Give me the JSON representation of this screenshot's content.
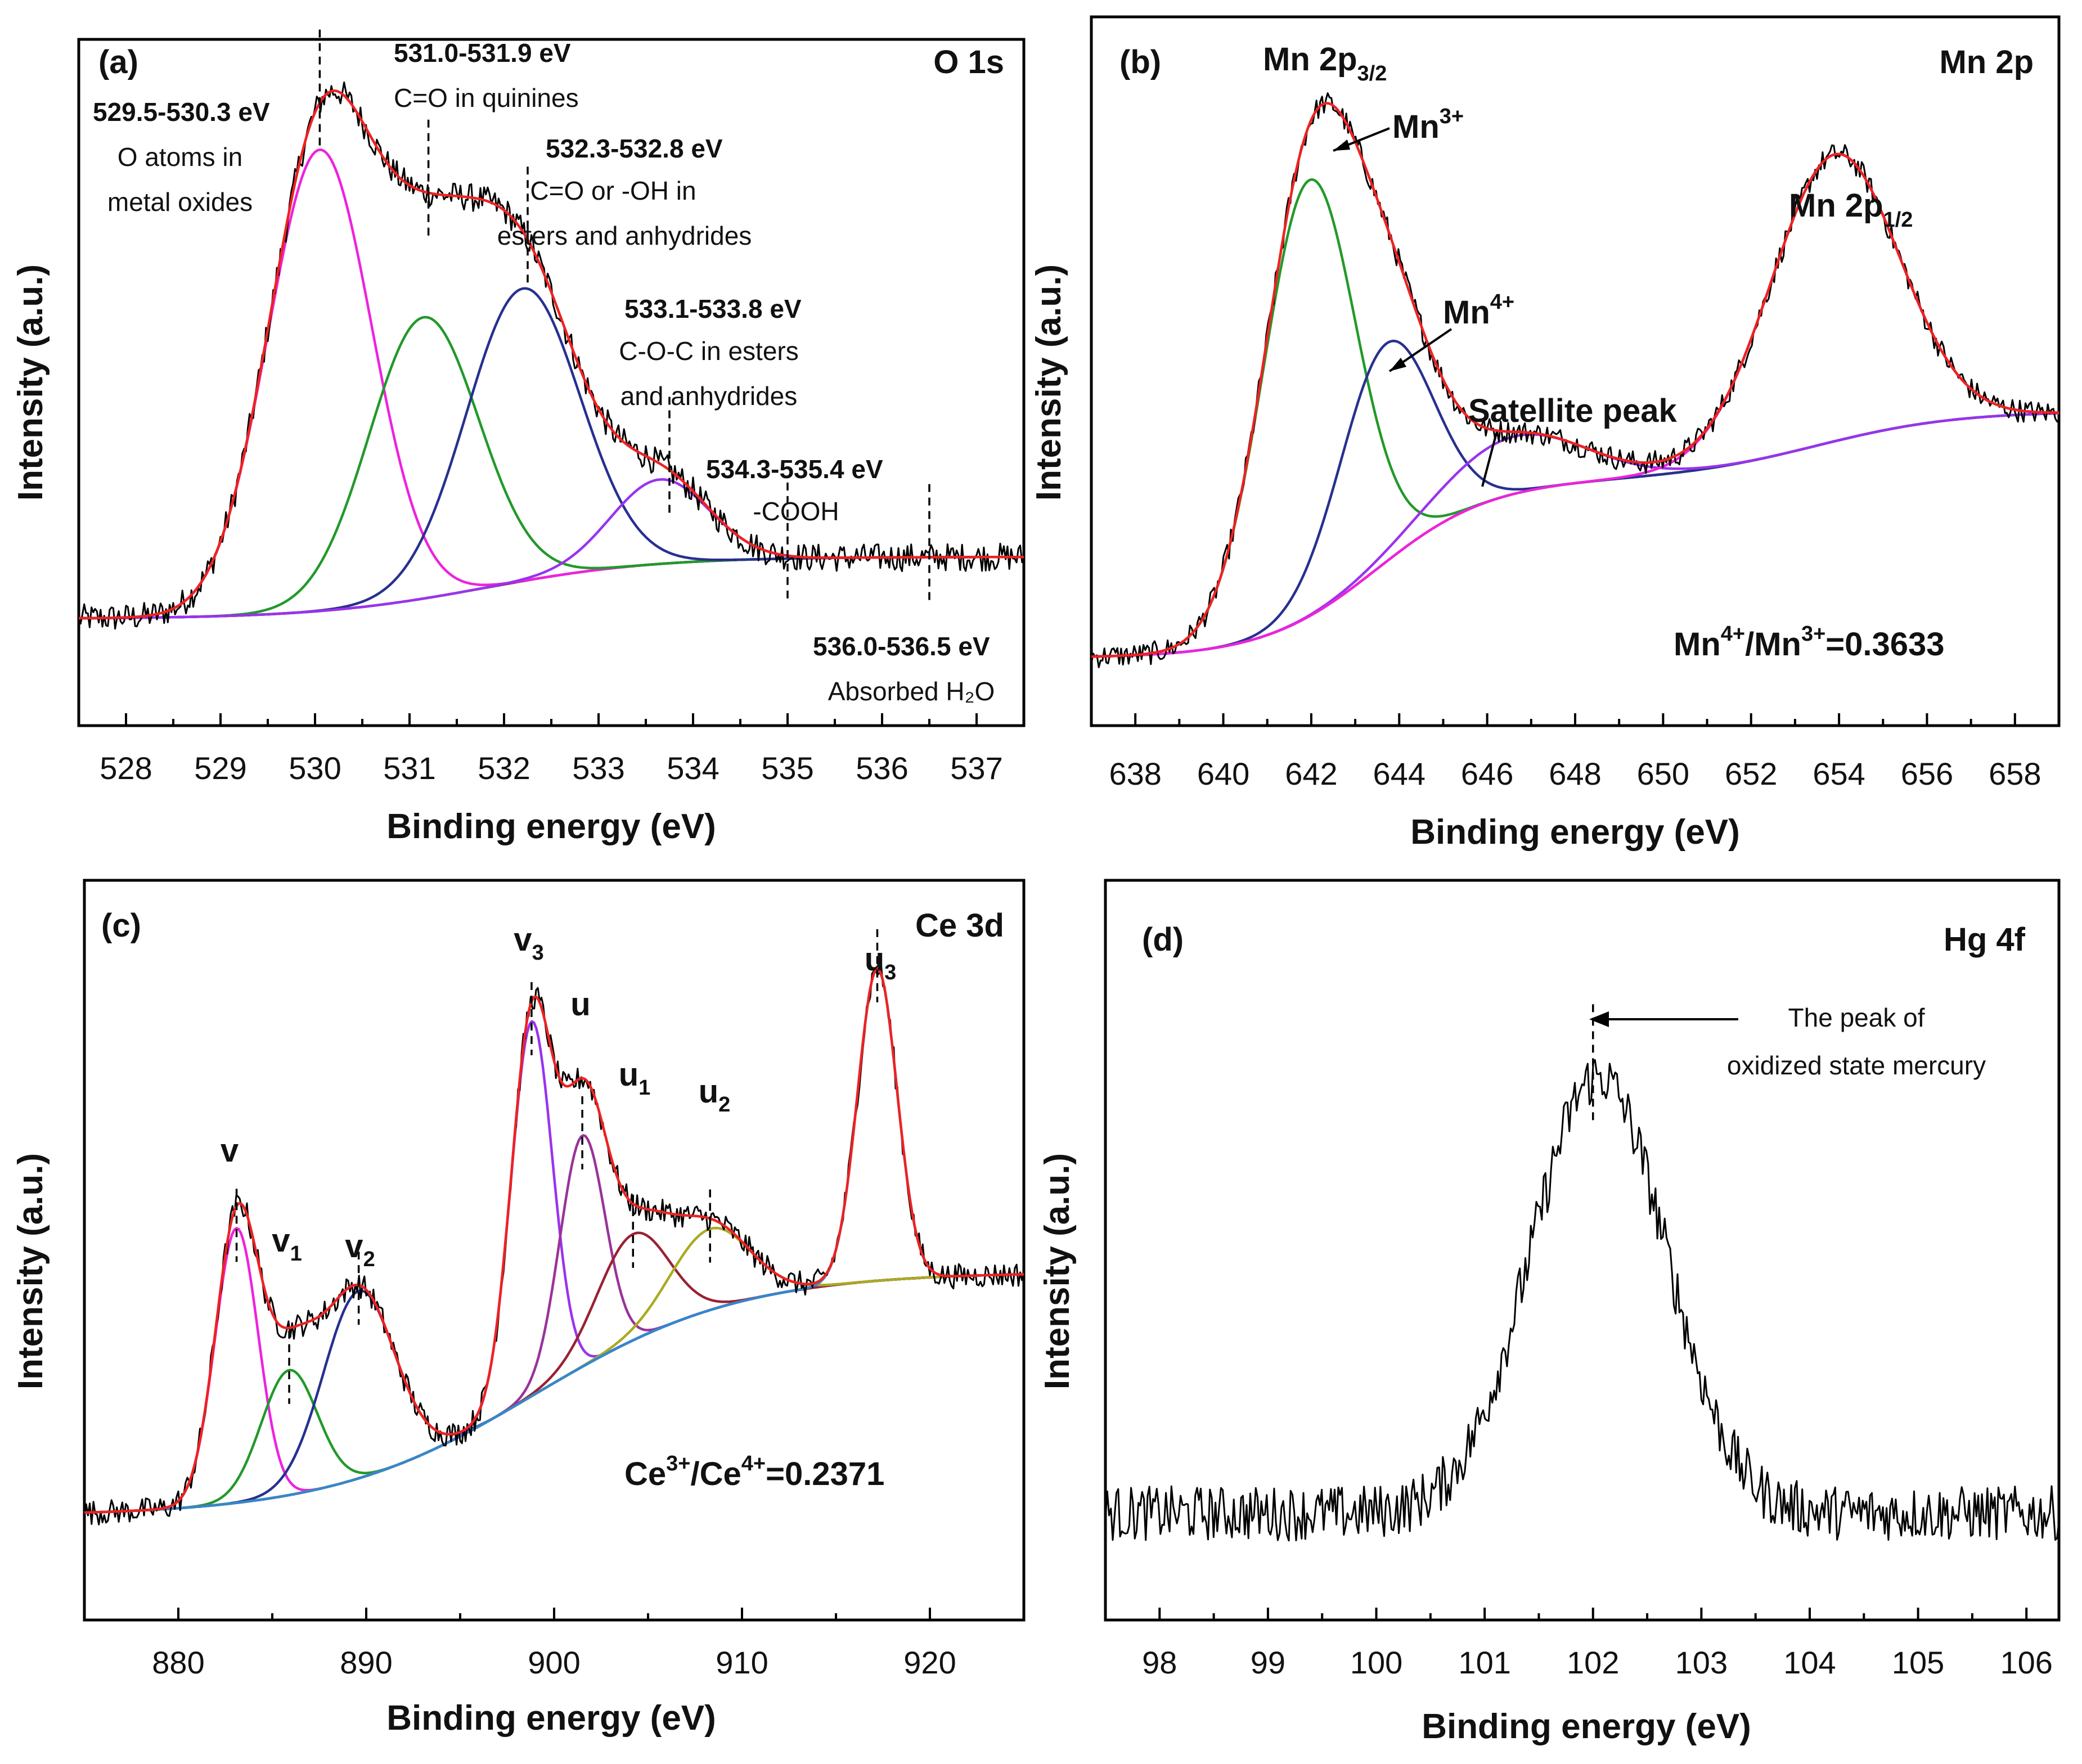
{
  "chart_data": [
    {
      "type": "line",
      "panel": "(a)",
      "title": "O 1s",
      "xlabel": "Binding energy (eV)",
      "ylabel": "Intensity (a.u.)",
      "xlim": [
        527.5,
        537.5
      ],
      "xticks": [
        "528",
        "529",
        "530",
        "531",
        "532",
        "533",
        "534",
        "535",
        "536",
        "537"
      ],
      "background": {
        "low": 0.07,
        "high": 0.18,
        "center": 531.8,
        "width": 0.9
      },
      "peaks": [
        {
          "name": "529.5-530.3 eV",
          "center": 530.05,
          "height": 0.82,
          "width": 0.55,
          "color": "#ee22dd"
        },
        {
          "name": "531.0-531.9 eV",
          "center": 531.15,
          "height": 0.5,
          "width": 0.58,
          "color": "#22992a"
        },
        {
          "name": "532.3-532.8 eV",
          "center": 532.2,
          "height": 0.52,
          "width": 0.6,
          "color": "#27308f"
        },
        {
          "name": "533.1-533.8 eV",
          "center": 533.65,
          "height": 0.15,
          "width": 0.52,
          "color": "#9933ee"
        }
      ],
      "noise": 0.025,
      "dashed_markers": [
        530.05,
        531.2,
        532.25,
        533.75,
        535.0,
        536.5
      ],
      "annotations": [
        {
          "bold": "529.5-530.3 eV",
          "lines": [
            "O atoms in",
            "metal oxides"
          ]
        },
        {
          "bold": "531.0-531.9 eV",
          "lines": [
            "C=O in quinines"
          ]
        },
        {
          "bold": "532.3-532.8 eV",
          "lines": [
            "C=O or -OH in",
            "esters and anhydrides"
          ]
        },
        {
          "bold": "533.1-533.8 eV",
          "lines": [
            "C-O-C in esters",
            "and anhydrides"
          ]
        },
        {
          "bold": "534.3-535.4 eV",
          "lines": [
            "-COOH"
          ]
        },
        {
          "bold": "536.0-536.5 eV",
          "lines": [
            "Absorbed H₂O"
          ]
        }
      ]
    },
    {
      "type": "line",
      "panel": "(b)",
      "title": "Mn 2p",
      "xlabel": "Binding energy (eV)",
      "ylabel": "Intensity (a.u.)",
      "xlim": [
        637,
        659
      ],
      "xticks": [
        "638",
        "640",
        "642",
        "644",
        "646",
        "648",
        "650",
        "652",
        "654",
        "656",
        "658"
      ],
      "background": {
        "low": 0.03,
        "high": 0.34,
        "center": 643.5,
        "width": 1.3,
        "tail_low": 0.34,
        "tail_high": 0.46,
        "tail_center": 653.5,
        "tail_width": 1.6
      },
      "peaks": [
        {
          "name": "Mn3+",
          "center": 641.95,
          "height": 0.76,
          "width": 1.05,
          "color": "#22992a"
        },
        {
          "name": "Mn4+",
          "center": 643.7,
          "height": 0.38,
          "width": 1.05,
          "color": "#27308f"
        },
        {
          "name": "Satellite peak",
          "center": 646.6,
          "height": 0.1,
          "width": 1.6,
          "color": "#9933ee"
        },
        {
          "name": "Mn 2p1/2",
          "center": 653.9,
          "height": 0.5,
          "width": 1.45,
          "color": "#ee22dd"
        }
      ],
      "noise": 0.02,
      "labels": {
        "p32_main": "Mn 2p",
        "p32_sub": "3/2",
        "p12_main": "Mn 2p",
        "p12_sub": "1/2",
        "mn3_main": "Mn",
        "mn3_sup": "3+",
        "mn4_main": "Mn",
        "mn4_sup": "4+",
        "satellite": "Satellite peak",
        "ratio_a": "Mn",
        "ratio_a_sup": "4+",
        "ratio_sep": "/Mn",
        "ratio_b_sup": "3+",
        "ratio_val": "=0.3633"
      }
    },
    {
      "type": "line",
      "panel": "(c)",
      "title": "Ce 3d",
      "xlabel": "Binding energy (eV)",
      "ylabel": "Intensity (a.u.)",
      "xlim": [
        875,
        925
      ],
      "xticks": [
        "880",
        "890",
        "900",
        "910",
        "920"
      ],
      "background": {
        "low": 0.05,
        "high": 0.44,
        "center": 899,
        "width": 5.5
      },
      "peaks": [
        {
          "name": "v",
          "center": 883.1,
          "height": 0.44,
          "width": 1.15,
          "color": "#ee22dd"
        },
        {
          "name": "v1",
          "center": 885.9,
          "height": 0.2,
          "width": 1.5,
          "color": "#22992a"
        },
        {
          "name": "v2",
          "center": 889.6,
          "height": 0.3,
          "width": 1.9,
          "color": "#27308f"
        },
        {
          "name": "v3",
          "center": 898.8,
          "height": 0.6,
          "width": 1.1,
          "color": "#9933ee"
        },
        {
          "name": "u",
          "center": 901.5,
          "height": 0.37,
          "width": 1.2,
          "color": "#993399"
        },
        {
          "name": "u1",
          "center": 904.2,
          "height": 0.17,
          "width": 1.9,
          "color": "#992233"
        },
        {
          "name": "u2",
          "center": 908.3,
          "height": 0.13,
          "width": 2.1,
          "color": "#aaaa22"
        },
        {
          "name": "u3",
          "center": 917.2,
          "height": 0.5,
          "width": 1.05,
          "color": "#3388cc"
        }
      ],
      "noise": 0.02,
      "labels": {
        "v": "v",
        "v1": "v",
        "v1_sub": "1",
        "v2": "v",
        "v2_sub": "2",
        "v3": "v",
        "v3_sub": "3",
        "u": "u",
        "u1": "u",
        "u1_sub": "1",
        "u2": "u",
        "u2_sub": "2",
        "u3": "u",
        "u3_sub": "3",
        "ratio_a": "Ce",
        "ratio_a_sup": "3+",
        "ratio_sep": "/Ce",
        "ratio_b_sup": "4+",
        "ratio_val": "=0.2371"
      }
    },
    {
      "type": "line",
      "panel": "(d)",
      "title": "Hg 4f",
      "xlabel": "Binding energy (eV)",
      "ylabel": "Intensity (a.u.)",
      "xlim": [
        97.5,
        106.3
      ],
      "xticks": [
        "98",
        "99",
        "100",
        "101",
        "102",
        "103",
        "104",
        "105",
        "106"
      ],
      "background": {
        "low": 0.12,
        "high": 0.12,
        "center": 102,
        "width": 1
      },
      "peaks": [
        {
          "name": "Hg 4f",
          "center": 102.05,
          "height": 0.72,
          "width": 0.62,
          "color": "#000000"
        }
      ],
      "noise": 0.045,
      "dashed_markers": [
        102.0
      ],
      "annotation": [
        "The peak of",
        "oxidized state mercury"
      ]
    }
  ]
}
